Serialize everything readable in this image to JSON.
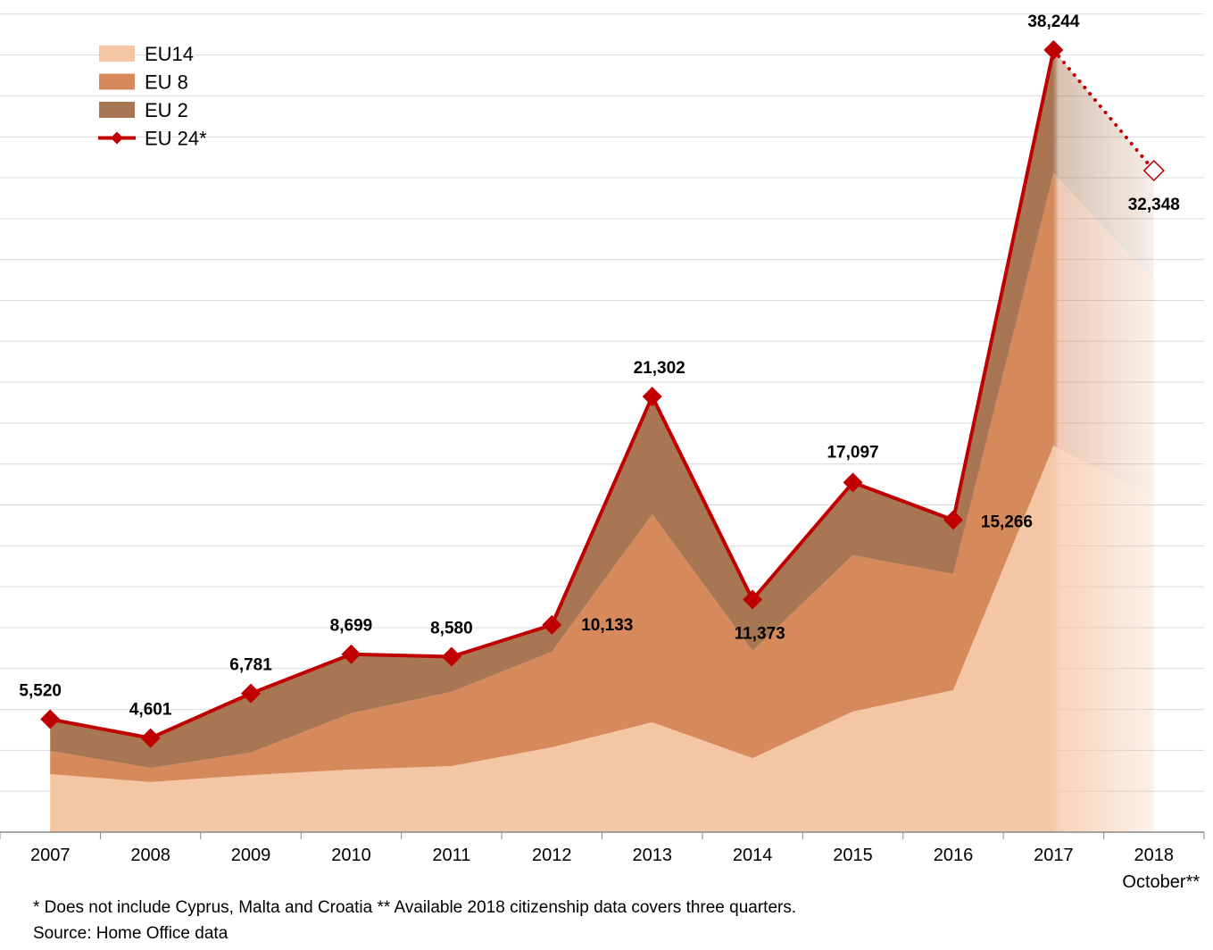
{
  "chart_data": {
    "type": "area",
    "title": "",
    "xlabel": "",
    "ylabel": "",
    "categories": [
      "2007",
      "2008",
      "2009",
      "2010",
      "2011",
      "2012",
      "2013",
      "2014",
      "2015",
      "2016",
      "2017",
      "2018"
    ],
    "category_sublabels": [
      "",
      "",
      "",
      "",
      "",
      "",
      "",
      "",
      "",
      "",
      "",
      "October**"
    ],
    "ylim": [
      0,
      40000
    ],
    "y_gridline_step": 2000,
    "grid": true,
    "stacked": true,
    "series": [
      {
        "name": "EU14",
        "type": "area",
        "color": "#F4C6A4",
        "values": [
          2840,
          2450,
          2790,
          3060,
          3230,
          4150,
          5370,
          3620,
          5900,
          6940,
          18900,
          16330
        ]
      },
      {
        "name": "EU 8",
        "type": "area",
        "color": "#D68A5C",
        "values": [
          1130,
          690,
          1100,
          2750,
          3630,
          4670,
          10180,
          5240,
          7640,
          5680,
          13330,
          10610
        ]
      },
      {
        "name": "EU 2",
        "type": "area",
        "color": "#A87653",
        "values": [
          1550,
          1461,
          2891,
          2889,
          1720,
          1313,
          5752,
          2513,
          3557,
          2646,
          6014,
          5408
        ]
      },
      {
        "name": "EU 24*",
        "type": "line",
        "color": "#C00000",
        "values": [
          5520,
          4601,
          6781,
          8699,
          8580,
          10133,
          21302,
          11373,
          17097,
          15266,
          38244,
          32348
        ],
        "labels": [
          "5,520",
          "4,601",
          "6,781",
          "8,699",
          "8,580",
          "10,133",
          "21,302",
          "11,373",
          "17,097",
          "15,266",
          "38,244",
          "32,348"
        ],
        "partial_last_point": true
      }
    ],
    "faded_categories": [
      "2018"
    ],
    "legend": {
      "position": "top-left",
      "entries": [
        "EU14",
        "EU 8",
        "EU 2",
        "EU 24*"
      ]
    }
  },
  "footnotes": {
    "note": "* Does not include Cyprus, Malta and Croatia  ** Available 2018 citizenship data covers three quarters.",
    "source": "Source: Home Office data"
  }
}
